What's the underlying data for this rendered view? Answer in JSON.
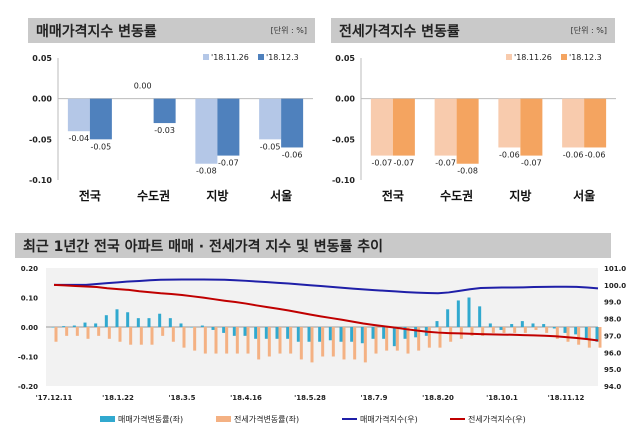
{
  "sale_panel": {
    "title": "매매가격지수 변동률",
    "unit": "[단위 : %]"
  },
  "jeonse_panel": {
    "title": "전세가격지수 변동률",
    "unit": "[단위 : %]"
  },
  "trend_panel": {
    "title": "최근 1년간 전국 아파트 매매 · 전세가격 지수 및 변동률 추이"
  },
  "chart_data": [
    {
      "type": "bar",
      "categories": [
        "전국",
        "수도권",
        "지방",
        "서울"
      ],
      "series": [
        {
          "name": "'18.11.26",
          "values": [
            -0.04,
            0.0,
            -0.08,
            -0.05
          ],
          "color": "#b4c7e7"
        },
        {
          "name": "'18.12.3",
          "values": [
            -0.05,
            -0.03,
            -0.07,
            -0.06
          ],
          "color": "#4f81bd"
        }
      ],
      "yticks": [
        "0.05",
        "0.00",
        "-0.05",
        "-0.10"
      ],
      "ylim": [
        -0.1,
        0.05
      ],
      "legend": "top-right"
    },
    {
      "type": "bar",
      "categories": [
        "전국",
        "수도권",
        "지방",
        "서울"
      ],
      "series": [
        {
          "name": "'18.11.26",
          "values": [
            -0.07,
            -0.07,
            -0.06,
            -0.06
          ],
          "color": "#f8cbad"
        },
        {
          "name": "'18.12.3",
          "values": [
            -0.07,
            -0.08,
            -0.07,
            -0.06
          ],
          "color": "#f4a460"
        }
      ],
      "yticks": [
        "0.05",
        "0.00",
        "-0.05",
        "-0.10"
      ],
      "ylim": [
        -0.1,
        0.05
      ],
      "legend": "top-right"
    },
    {
      "type": "bar+line",
      "xticks": [
        "'17.12.11",
        "'18.1.22",
        "'18.3.5",
        "'18.4.16",
        "'18.5.28",
        "'18.7.9",
        "'18.8.20",
        "'18.10.1",
        "'18.11.12"
      ],
      "yticks_left": [
        "0.20",
        "0.10",
        "0.00",
        "-0.10",
        "-0.20"
      ],
      "ylim_left": [
        -0.2,
        0.2
      ],
      "yticks_right": [
        "101.0",
        "100.0",
        "99.0",
        "98.0",
        "97.0",
        "96.0",
        "95.0",
        "94.0"
      ],
      "ylim_right": [
        94.0,
        101.0
      ],
      "legend": "bottom",
      "series": [
        {
          "name": "매매가격변동률(좌)",
          "axis": "left",
          "kind": "bar",
          "color": "#31a9cf",
          "values": [
            0.0,
            0.003,
            0.005,
            0.015,
            0.012,
            0.04,
            0.06,
            0.05,
            0.03,
            0.03,
            0.045,
            0.03,
            0.012,
            0.0,
            0.005,
            -0.01,
            -0.02,
            -0.03,
            -0.03,
            -0.04,
            -0.04,
            -0.04,
            -0.04,
            -0.05,
            -0.05,
            -0.05,
            -0.045,
            -0.05,
            -0.05,
            -0.055,
            -0.04,
            -0.04,
            -0.065,
            -0.04,
            -0.035,
            -0.03,
            0.02,
            0.06,
            0.09,
            0.1,
            0.07,
            0.012,
            -0.01,
            0.01,
            0.02,
            0.012,
            0.01,
            -0.005,
            -0.02,
            -0.025,
            -0.04,
            -0.05
          ]
        },
        {
          "name": "전세가격변동률(좌)",
          "axis": "left",
          "kind": "bar",
          "color": "#f4b183",
          "values": [
            -0.05,
            -0.03,
            -0.03,
            -0.04,
            -0.03,
            -0.04,
            -0.05,
            -0.06,
            -0.06,
            -0.06,
            -0.03,
            -0.05,
            -0.07,
            -0.08,
            -0.09,
            -0.09,
            -0.09,
            -0.09,
            -0.09,
            -0.11,
            -0.1,
            -0.09,
            -0.09,
            -0.11,
            -0.12,
            -0.1,
            -0.1,
            -0.11,
            -0.11,
            -0.12,
            -0.09,
            -0.08,
            -0.08,
            -0.09,
            -0.08,
            -0.07,
            -0.07,
            -0.05,
            -0.04,
            -0.03,
            -0.03,
            -0.02,
            -0.02,
            -0.02,
            -0.02,
            -0.01,
            -0.02,
            -0.04,
            -0.05,
            -0.06,
            -0.07,
            -0.07
          ]
        },
        {
          "name": "매매가격지수(우)",
          "axis": "right",
          "kind": "line",
          "color": "#1f1fa8",
          "values": [
            100.0,
            100.0,
            100.0,
            100.0,
            100.05,
            100.1,
            100.15,
            100.2,
            100.23,
            100.27,
            100.3,
            100.31,
            100.32,
            100.32,
            100.32,
            100.31,
            100.3,
            100.27,
            100.24,
            100.2,
            100.16,
            100.12,
            100.08,
            100.03,
            99.98,
            99.93,
            99.88,
            99.83,
            99.78,
            99.73,
            99.69,
            99.65,
            99.61,
            99.57,
            99.54,
            99.52,
            99.5,
            99.55,
            99.64,
            99.74,
            99.81,
            99.83,
            99.84,
            99.84,
            99.85,
            99.87,
            99.88,
            99.89,
            99.89,
            99.88,
            99.84,
            99.79
          ]
        },
        {
          "name": "전세가격지수(우)",
          "axis": "right",
          "kind": "line",
          "color": "#c00000",
          "values": [
            100.0,
            99.97,
            99.93,
            99.9,
            99.87,
            99.8,
            99.75,
            99.7,
            99.62,
            99.56,
            99.5,
            99.46,
            99.4,
            99.32,
            99.24,
            99.15,
            99.06,
            98.98,
            98.89,
            98.78,
            98.68,
            98.58,
            98.48,
            98.36,
            98.24,
            98.13,
            98.03,
            97.93,
            97.82,
            97.71,
            97.62,
            97.54,
            97.46,
            97.37,
            97.29,
            97.22,
            97.17,
            97.14,
            97.12,
            97.1,
            97.08,
            97.06,
            97.05,
            97.04,
            97.02,
            97.0,
            96.98,
            96.95,
            96.9,
            96.85,
            96.78,
            96.7
          ]
        }
      ]
    }
  ]
}
